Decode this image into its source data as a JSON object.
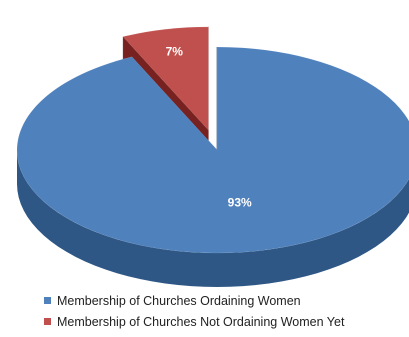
{
  "chart_data": {
    "type": "pie",
    "title": "",
    "categories": [
      "Membership of Churches Ordaining Women",
      "Membership of Churches Not Ordaining Women Yet"
    ],
    "values": [
      93,
      7
    ],
    "data_labels": [
      "93%",
      "7%"
    ],
    "colors": [
      "#4f81bd",
      "#c0504d"
    ],
    "side_colors": [
      "#2e5786",
      "#772220"
    ],
    "exploded": [
      false,
      true
    ],
    "three_d": true,
    "legend_position": "bottom"
  }
}
